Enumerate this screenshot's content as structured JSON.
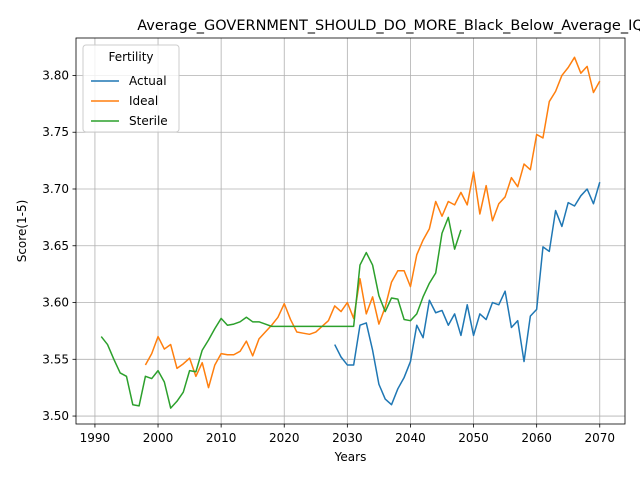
{
  "chart_data": {
    "type": "line",
    "title": "Average_GOVERNMENT_SHOULD_DO_MORE_Black_Below_Average_IQ",
    "xlabel": "Years",
    "ylabel": "Score(1-5)",
    "xlim": [
      1987,
      2074
    ],
    "ylim": [
      3.493,
      3.833
    ],
    "xticks": [
      1990,
      2000,
      2010,
      2020,
      2030,
      2040,
      2050,
      2060,
      2070
    ],
    "yticks": [
      3.5,
      3.55,
      3.6,
      3.65,
      3.7,
      3.75,
      3.8
    ],
    "ytick_labels": [
      "3.50",
      "3.55",
      "3.60",
      "3.65",
      "3.70",
      "3.75",
      "3.80"
    ],
    "grid": true,
    "legend": {
      "title": "Fertility",
      "position": "upper-left"
    },
    "series": [
      {
        "name": "Actual",
        "color": "#1f77b4",
        "x": [
          2028,
          2029,
          2030,
          2031,
          2032,
          2033,
          2034,
          2035,
          2036,
          2037,
          2038,
          2039,
          2040,
          2041,
          2042,
          2043,
          2044,
          2045,
          2046,
          2047,
          2048,
          2049,
          2050,
          2051,
          2052,
          2053,
          2054,
          2055,
          2056,
          2057,
          2058,
          2059,
          2060,
          2061,
          2062,
          2063,
          2064,
          2065,
          2066,
          2067,
          2068,
          2069,
          2070
        ],
        "values": [
          3.563,
          3.552,
          3.545,
          3.545,
          3.58,
          3.582,
          3.558,
          3.528,
          3.515,
          3.51,
          3.524,
          3.534,
          3.548,
          3.58,
          3.569,
          3.602,
          3.591,
          3.593,
          3.58,
          3.59,
          3.571,
          3.598,
          3.571,
          3.59,
          3.585,
          3.6,
          3.598,
          3.61,
          3.578,
          3.584,
          3.548,
          3.588,
          3.594,
          3.649,
          3.645,
          3.681,
          3.667,
          3.688,
          3.685,
          3.694,
          3.7,
          3.687,
          3.706
        ]
      },
      {
        "name": "Ideal",
        "color": "#ff7f0e",
        "x": [
          1998,
          1999,
          2000,
          2001,
          2002,
          2003,
          2004,
          2005,
          2006,
          2007,
          2008,
          2009,
          2010,
          2011,
          2012,
          2013,
          2014,
          2015,
          2016,
          2017,
          2018,
          2019,
          2020,
          2021,
          2022,
          2023,
          2024,
          2025,
          2026,
          2027,
          2028,
          2029,
          2030,
          2031,
          2032,
          2033,
          2034,
          2035,
          2036,
          2037,
          2038,
          2039,
          2040,
          2041,
          2042,
          2043,
          2044,
          2045,
          2046,
          2047,
          2048,
          2049,
          2050,
          2051,
          2052,
          2053,
          2054,
          2055,
          2056,
          2057,
          2058,
          2059,
          2060,
          2061,
          2062,
          2063,
          2064,
          2065,
          2066,
          2067,
          2068,
          2069,
          2070
        ],
        "values": [
          3.545,
          3.555,
          3.57,
          3.559,
          3.563,
          3.542,
          3.546,
          3.551,
          3.535,
          3.547,
          3.525,
          3.545,
          3.555,
          3.554,
          3.554,
          3.557,
          3.566,
          3.553,
          3.568,
          3.574,
          3.58,
          3.587,
          3.599,
          3.585,
          3.574,
          3.573,
          3.572,
          3.574,
          3.579,
          3.584,
          3.597,
          3.592,
          3.6,
          3.586,
          3.621,
          3.59,
          3.605,
          3.581,
          3.596,
          3.618,
          3.628,
          3.628,
          3.614,
          3.642,
          3.655,
          3.665,
          3.689,
          3.676,
          3.689,
          3.686,
          3.697,
          3.686,
          3.715,
          3.678,
          3.703,
          3.672,
          3.687,
          3.693,
          3.71,
          3.702,
          3.722,
          3.717,
          3.748,
          3.745,
          3.777,
          3.786,
          3.8,
          3.807,
          3.816,
          3.802,
          3.808,
          3.785,
          3.795
        ]
      },
      {
        "name": "Sterile",
        "color": "#2ca02c",
        "x": [
          1991,
          1992,
          1993,
          1994,
          1995,
          1996,
          1997,
          1998,
          1999,
          2000,
          2001,
          2002,
          2003,
          2004,
          2005,
          2006,
          2007,
          2008,
          2009,
          2010,
          2011,
          2012,
          2013,
          2014,
          2015,
          2016,
          2017,
          2018,
          2019,
          2020,
          2021,
          2022,
          2023,
          2024,
          2025,
          2026,
          2027,
          2028,
          2029,
          2030,
          2031,
          2032,
          2033,
          2034,
          2035,
          2036,
          2037,
          2038,
          2039,
          2040,
          2041,
          2042,
          2043,
          2044,
          2045,
          2046,
          2047,
          2048
        ],
        "values": [
          3.57,
          3.563,
          3.55,
          3.538,
          3.535,
          3.51,
          3.509,
          3.535,
          3.533,
          3.54,
          3.53,
          3.507,
          3.513,
          3.521,
          3.54,
          3.539,
          3.558,
          3.567,
          3.577,
          3.586,
          3.58,
          3.581,
          3.583,
          3.587,
          3.583,
          3.583,
          3.581,
          3.579,
          3.579,
          3.579,
          3.579,
          3.579,
          3.579,
          3.579,
          3.579,
          3.579,
          3.579,
          3.579,
          3.579,
          3.579,
          3.579,
          3.633,
          3.644,
          3.633,
          3.606,
          3.592,
          3.604,
          3.603,
          3.585,
          3.584,
          3.59,
          3.605,
          3.617,
          3.626,
          3.661,
          3.675,
          3.647,
          3.664
        ]
      }
    ]
  }
}
